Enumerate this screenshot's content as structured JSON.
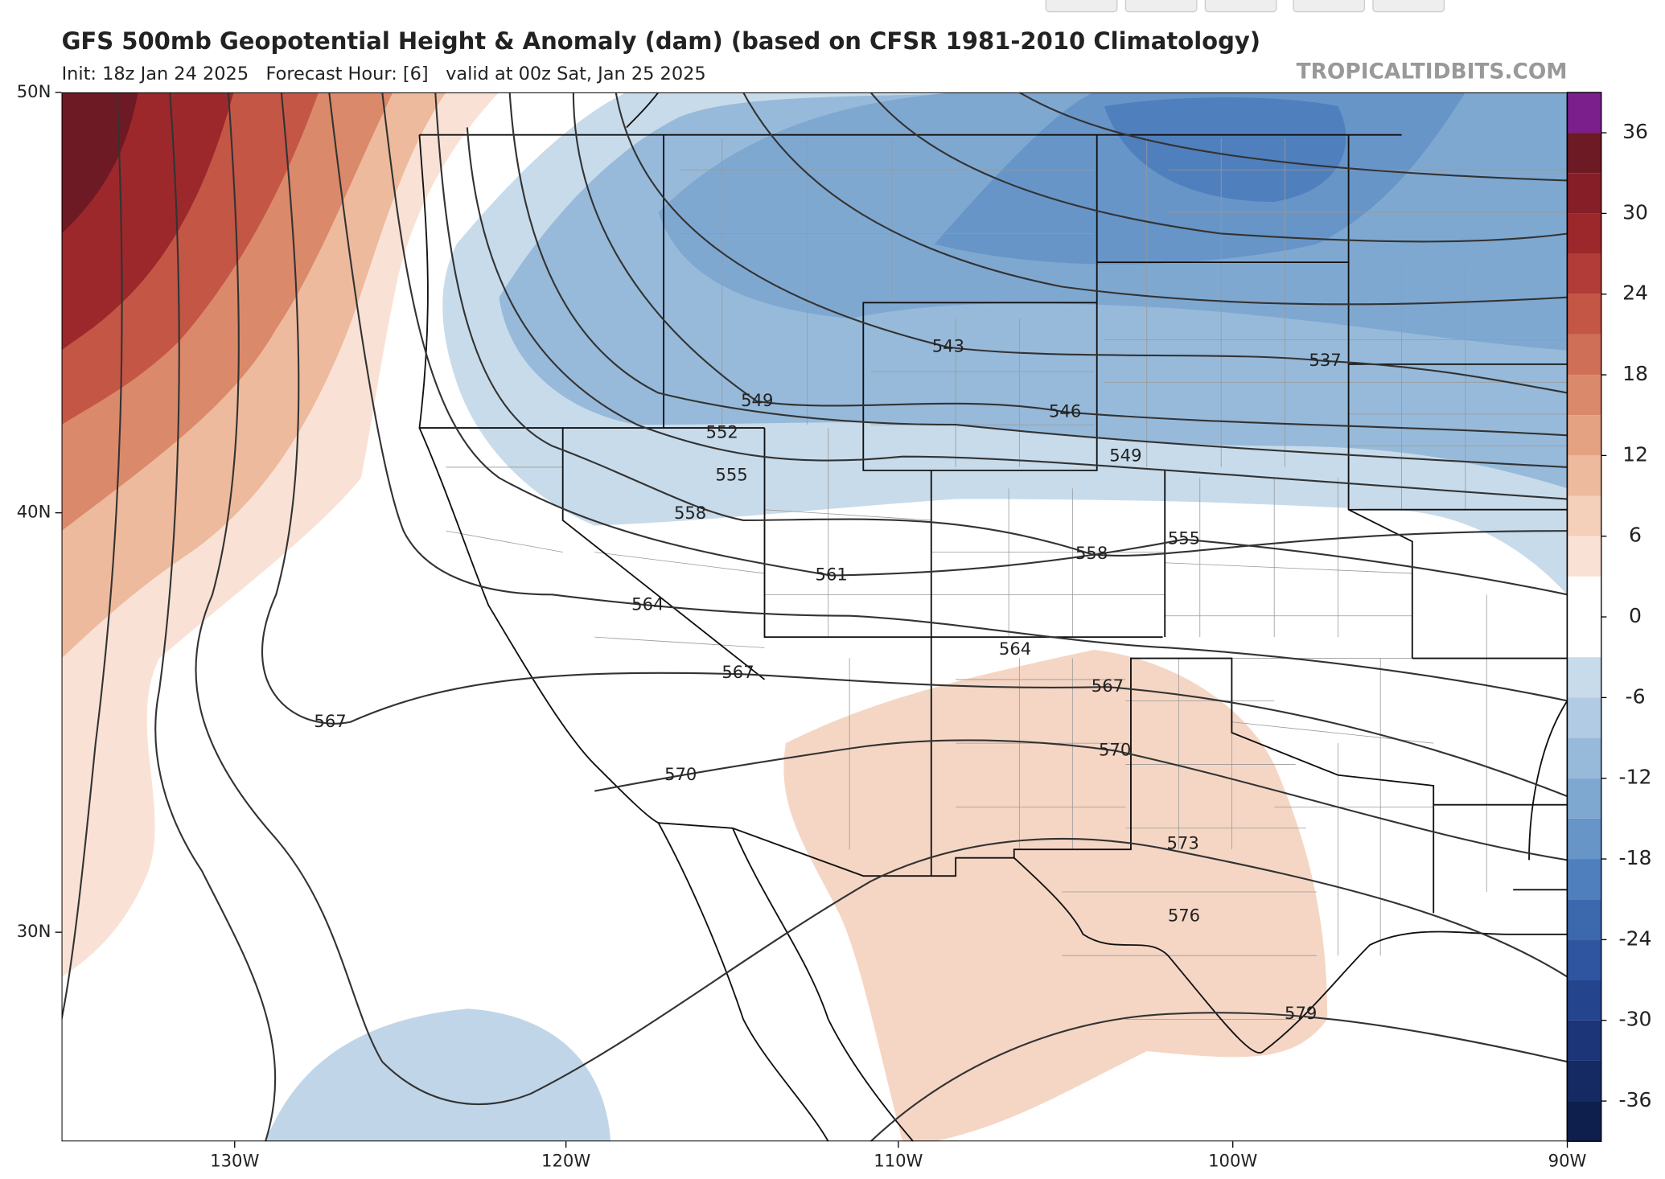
{
  "header": {
    "title": "GFS 500mb Geopotential Height & Anomaly (dam) (based on CFSR 1981-2010 Climatology)",
    "subtitle": "Init: 18z Jan 24 2025   Forecast Hour: [6]   valid at 00z Sat, Jan 25 2025",
    "watermark": "TROPICALTIDBITS.COM"
  },
  "map": {
    "lat_labels": [
      "50N",
      "40N",
      "30N"
    ],
    "lon_labels": [
      "130W",
      "120W",
      "110W",
      "100W",
      "90W"
    ],
    "contour_labels": [
      543,
      546,
      549,
      549,
      552,
      555,
      555,
      558,
      558,
      561,
      564,
      564,
      567,
      567,
      567,
      570,
      570,
      573,
      576,
      579,
      537
    ]
  },
  "colorbar": {
    "lim": [
      -39,
      39
    ],
    "ticks": [
      36,
      30,
      24,
      18,
      12,
      6,
      0,
      -6,
      -12,
      -18,
      -24,
      -30,
      -36
    ],
    "colors": [
      "#7b1f8c",
      "#6e1a24",
      "#851e27",
      "#9c282b",
      "#b23c37",
      "#c45646",
      "#d06f58",
      "#db896b",
      "#e5a283",
      "#eeba9d",
      "#f4cfb9",
      "#f9e2d5",
      "#ffffff",
      "#ffffff",
      "#c8dbea",
      "#b0cbe3",
      "#97bada",
      "#7fa8d1",
      "#6795c8",
      "#507fbd",
      "#3c68ae",
      "#2f55a0",
      "#25448e",
      "#1c3579",
      "#152a62",
      "#0f1f4d"
    ]
  }
}
